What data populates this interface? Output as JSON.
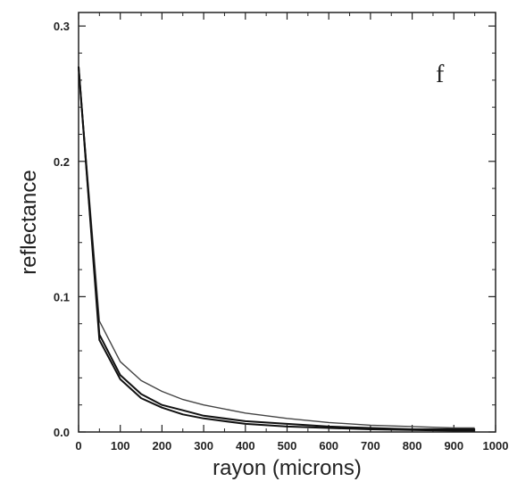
{
  "chart_data": {
    "type": "line",
    "panel_label": "f",
    "xlabel": "rayon (microns)",
    "ylabel": "reflectance",
    "xlim": [
      0,
      1000
    ],
    "ylim": [
      0,
      0.31
    ],
    "xticks": [
      "0",
      "100",
      "200",
      "300",
      "400",
      "500",
      "600",
      "700",
      "800",
      "900",
      "1000"
    ],
    "xtick_values": [
      0,
      100,
      200,
      300,
      400,
      500,
      600,
      700,
      800,
      900,
      1000
    ],
    "yticks": [
      "0.0",
      "0.1",
      "0.2",
      "0.3"
    ],
    "ytick_values": [
      0,
      0.1,
      0.2,
      0.3
    ],
    "grid": false,
    "legend": "none",
    "series": [
      {
        "color": "#444444",
        "x": [
          0,
          50,
          100,
          150,
          200,
          250,
          300,
          400,
          500,
          600,
          700,
          800,
          900,
          950
        ],
        "y": [
          0.27,
          0.082,
          0.052,
          0.038,
          0.03,
          0.024,
          0.02,
          0.014,
          0.01,
          0.007,
          0.005,
          0.004,
          0.003,
          0.003
        ]
      },
      {
        "color": "#111111",
        "x": [
          0,
          50,
          100,
          150,
          200,
          250,
          300,
          400,
          500,
          600,
          700,
          800,
          900,
          950
        ],
        "y": [
          0.27,
          0.072,
          0.042,
          0.028,
          0.02,
          0.016,
          0.012,
          0.008,
          0.006,
          0.004,
          0.003,
          0.002,
          0.002,
          0.002
        ]
      },
      {
        "color": "#111111",
        "x": [
          0,
          50,
          100,
          150,
          200,
          250,
          300,
          400,
          500,
          600,
          700,
          800,
          900,
          950
        ],
        "y": [
          0.27,
          0.068,
          0.039,
          0.025,
          0.018,
          0.013,
          0.01,
          0.006,
          0.004,
          0.003,
          0.002,
          0.0015,
          0.001,
          0.001
        ]
      }
    ]
  }
}
